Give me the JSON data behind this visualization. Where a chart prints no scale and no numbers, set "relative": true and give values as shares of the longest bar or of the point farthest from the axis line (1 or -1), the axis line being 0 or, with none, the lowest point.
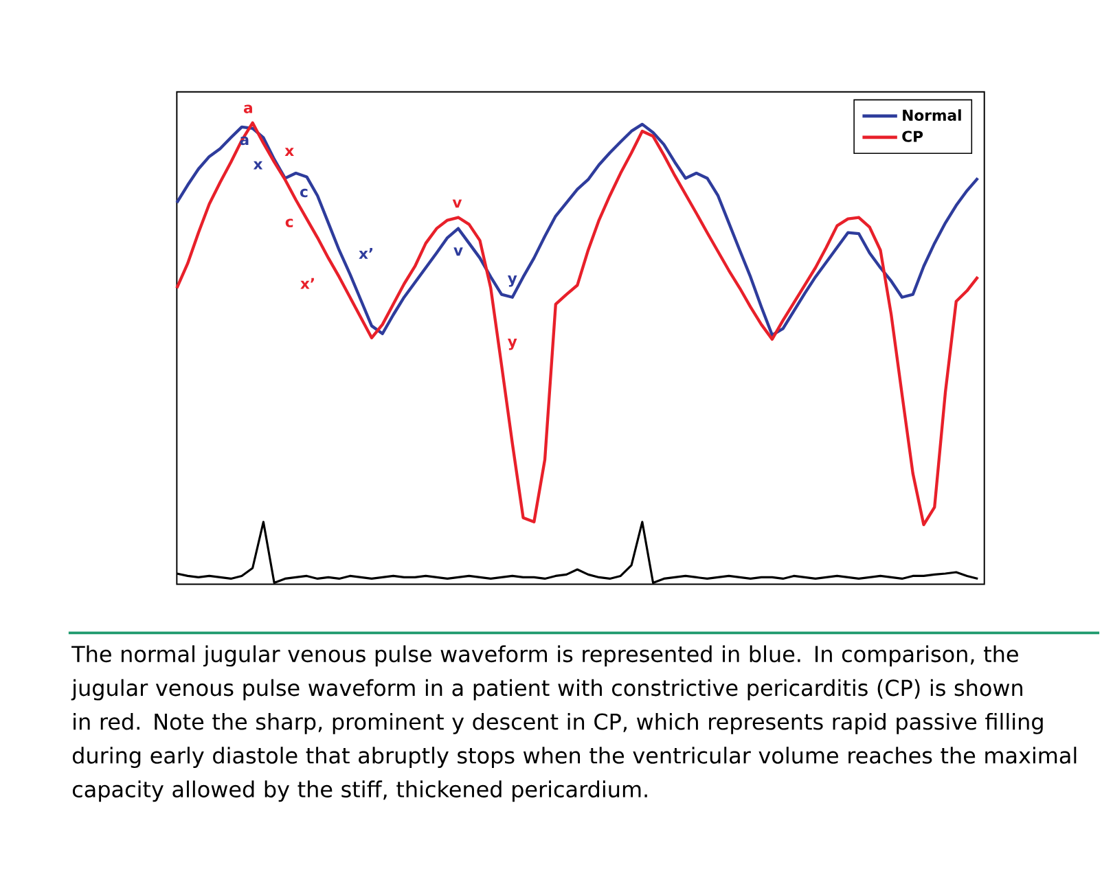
{
  "chart_data": {
    "type": "line",
    "relative": true,
    "legend": "top right",
    "categories": [
      null,
      null,
      null,
      null,
      null,
      null,
      null,
      null,
      null,
      null,
      null,
      null,
      null,
      null,
      null,
      null,
      null,
      null,
      null,
      null,
      null,
      null,
      null,
      null,
      null,
      null,
      null,
      null,
      null,
      null,
      null,
      null,
      null,
      null,
      null,
      null,
      null,
      null,
      null,
      null,
      null,
      null,
      null,
      null,
      null,
      null,
      null,
      null,
      null,
      null,
      null,
      null,
      null,
      null,
      null,
      null,
      null,
      null,
      null,
      null,
      null,
      null,
      null,
      null,
      null,
      null,
      null,
      null,
      null,
      null,
      null,
      null,
      null,
      null,
      null
    ],
    "series": [
      {
        "name": "Normal",
        "color": "#2e3c9c",
        "values": [
          0.827,
          0.865,
          0.9,
          0.927,
          0.944,
          0.968,
          0.991,
          0.988,
          0.968,
          0.921,
          0.88,
          0.891,
          0.883,
          0.842,
          0.783,
          0.724,
          0.672,
          0.616,
          0.56,
          0.543,
          0.584,
          0.622,
          0.654,
          0.686,
          0.718,
          0.751,
          0.771,
          0.739,
          0.707,
          0.666,
          0.628,
          0.622,
          0.666,
          0.707,
          0.754,
          0.798,
          0.827,
          0.856,
          0.877,
          0.909,
          0.935,
          0.959,
          0.982,
          0.997,
          0.979,
          0.953,
          0.915,
          0.88,
          0.891,
          0.88,
          0.842,
          0.783,
          0.724,
          0.666,
          0.601,
          0.54,
          0.554,
          0.592,
          0.63,
          0.666,
          0.698,
          0.73,
          0.762,
          0.76,
          0.718,
          0.686,
          0.657,
          0.622,
          0.628,
          0.689,
          0.739,
          0.783,
          0.821,
          0.853,
          0.88
        ]
      },
      {
        "name": "CP",
        "color": "#e8202a",
        "values": [
          0.642,
          0.695,
          0.762,
          0.824,
          0.871,
          0.915,
          0.962,
          1.0,
          0.956,
          0.915,
          0.877,
          0.833,
          0.792,
          0.751,
          0.707,
          0.666,
          0.622,
          0.578,
          0.534,
          0.563,
          0.607,
          0.651,
          0.689,
          0.739,
          0.771,
          0.789,
          0.795,
          0.78,
          0.745,
          0.642,
          0.475,
          0.305,
          0.144,
          0.135,
          0.27,
          0.607,
          0.628,
          0.648,
          0.724,
          0.789,
          0.842,
          0.891,
          0.935,
          0.982,
          0.971,
          0.93,
          0.886,
          0.845,
          0.804,
          0.762,
          0.721,
          0.68,
          0.642,
          0.601,
          0.563,
          0.531,
          0.572,
          0.61,
          0.648,
          0.686,
          0.73,
          0.777,
          0.792,
          0.795,
          0.774,
          0.724,
          0.584,
          0.411,
          0.24,
          0.129,
          0.167,
          0.416,
          0.613,
          0.636,
          0.666
        ]
      },
      {
        "color": "#000000",
        "values": [
          0.023,
          0.018,
          0.015,
          0.018,
          0.015,
          0.012,
          0.018,
          0.035,
          0.135,
          0.003,
          0.012,
          0.015,
          0.018,
          0.012,
          0.015,
          0.012,
          0.018,
          0.015,
          0.012,
          0.015,
          0.018,
          0.015,
          0.015,
          0.018,
          0.015,
          0.012,
          0.015,
          0.018,
          0.015,
          0.012,
          0.015,
          0.018,
          0.015,
          0.015,
          0.012,
          0.018,
          0.021,
          0.032,
          0.021,
          0.015,
          0.012,
          0.018,
          0.041,
          0.135,
          0.003,
          0.012,
          0.015,
          0.018,
          0.015,
          0.012,
          0.015,
          0.018,
          0.015,
          0.012,
          0.015,
          0.015,
          0.012,
          0.018,
          0.015,
          0.012,
          0.015,
          0.018,
          0.015,
          0.012,
          0.015,
          0.018,
          0.015,
          0.012,
          0.018,
          0.018,
          0.021,
          0.023,
          0.026,
          0.018,
          0.012
        ]
      }
    ],
    "annotations": [
      "a",
      "a",
      "x",
      "x",
      "c",
      "c",
      "x’",
      "x’",
      "v",
      "v",
      "y",
      "y",
      "The normal jugular venous pulse waveform is represented in blue. In comparison, the jugular venous pulse waveform in a patient with constrictive pericarditis (CP) is shown in red. Note the sharp, prominent y descent in CP, which represents rapid passive filling during early diastole that abruptly stops when the ventricular volume reaches the maximal capacity allowed by the stiff, thickened pericardium."
    ]
  }
}
